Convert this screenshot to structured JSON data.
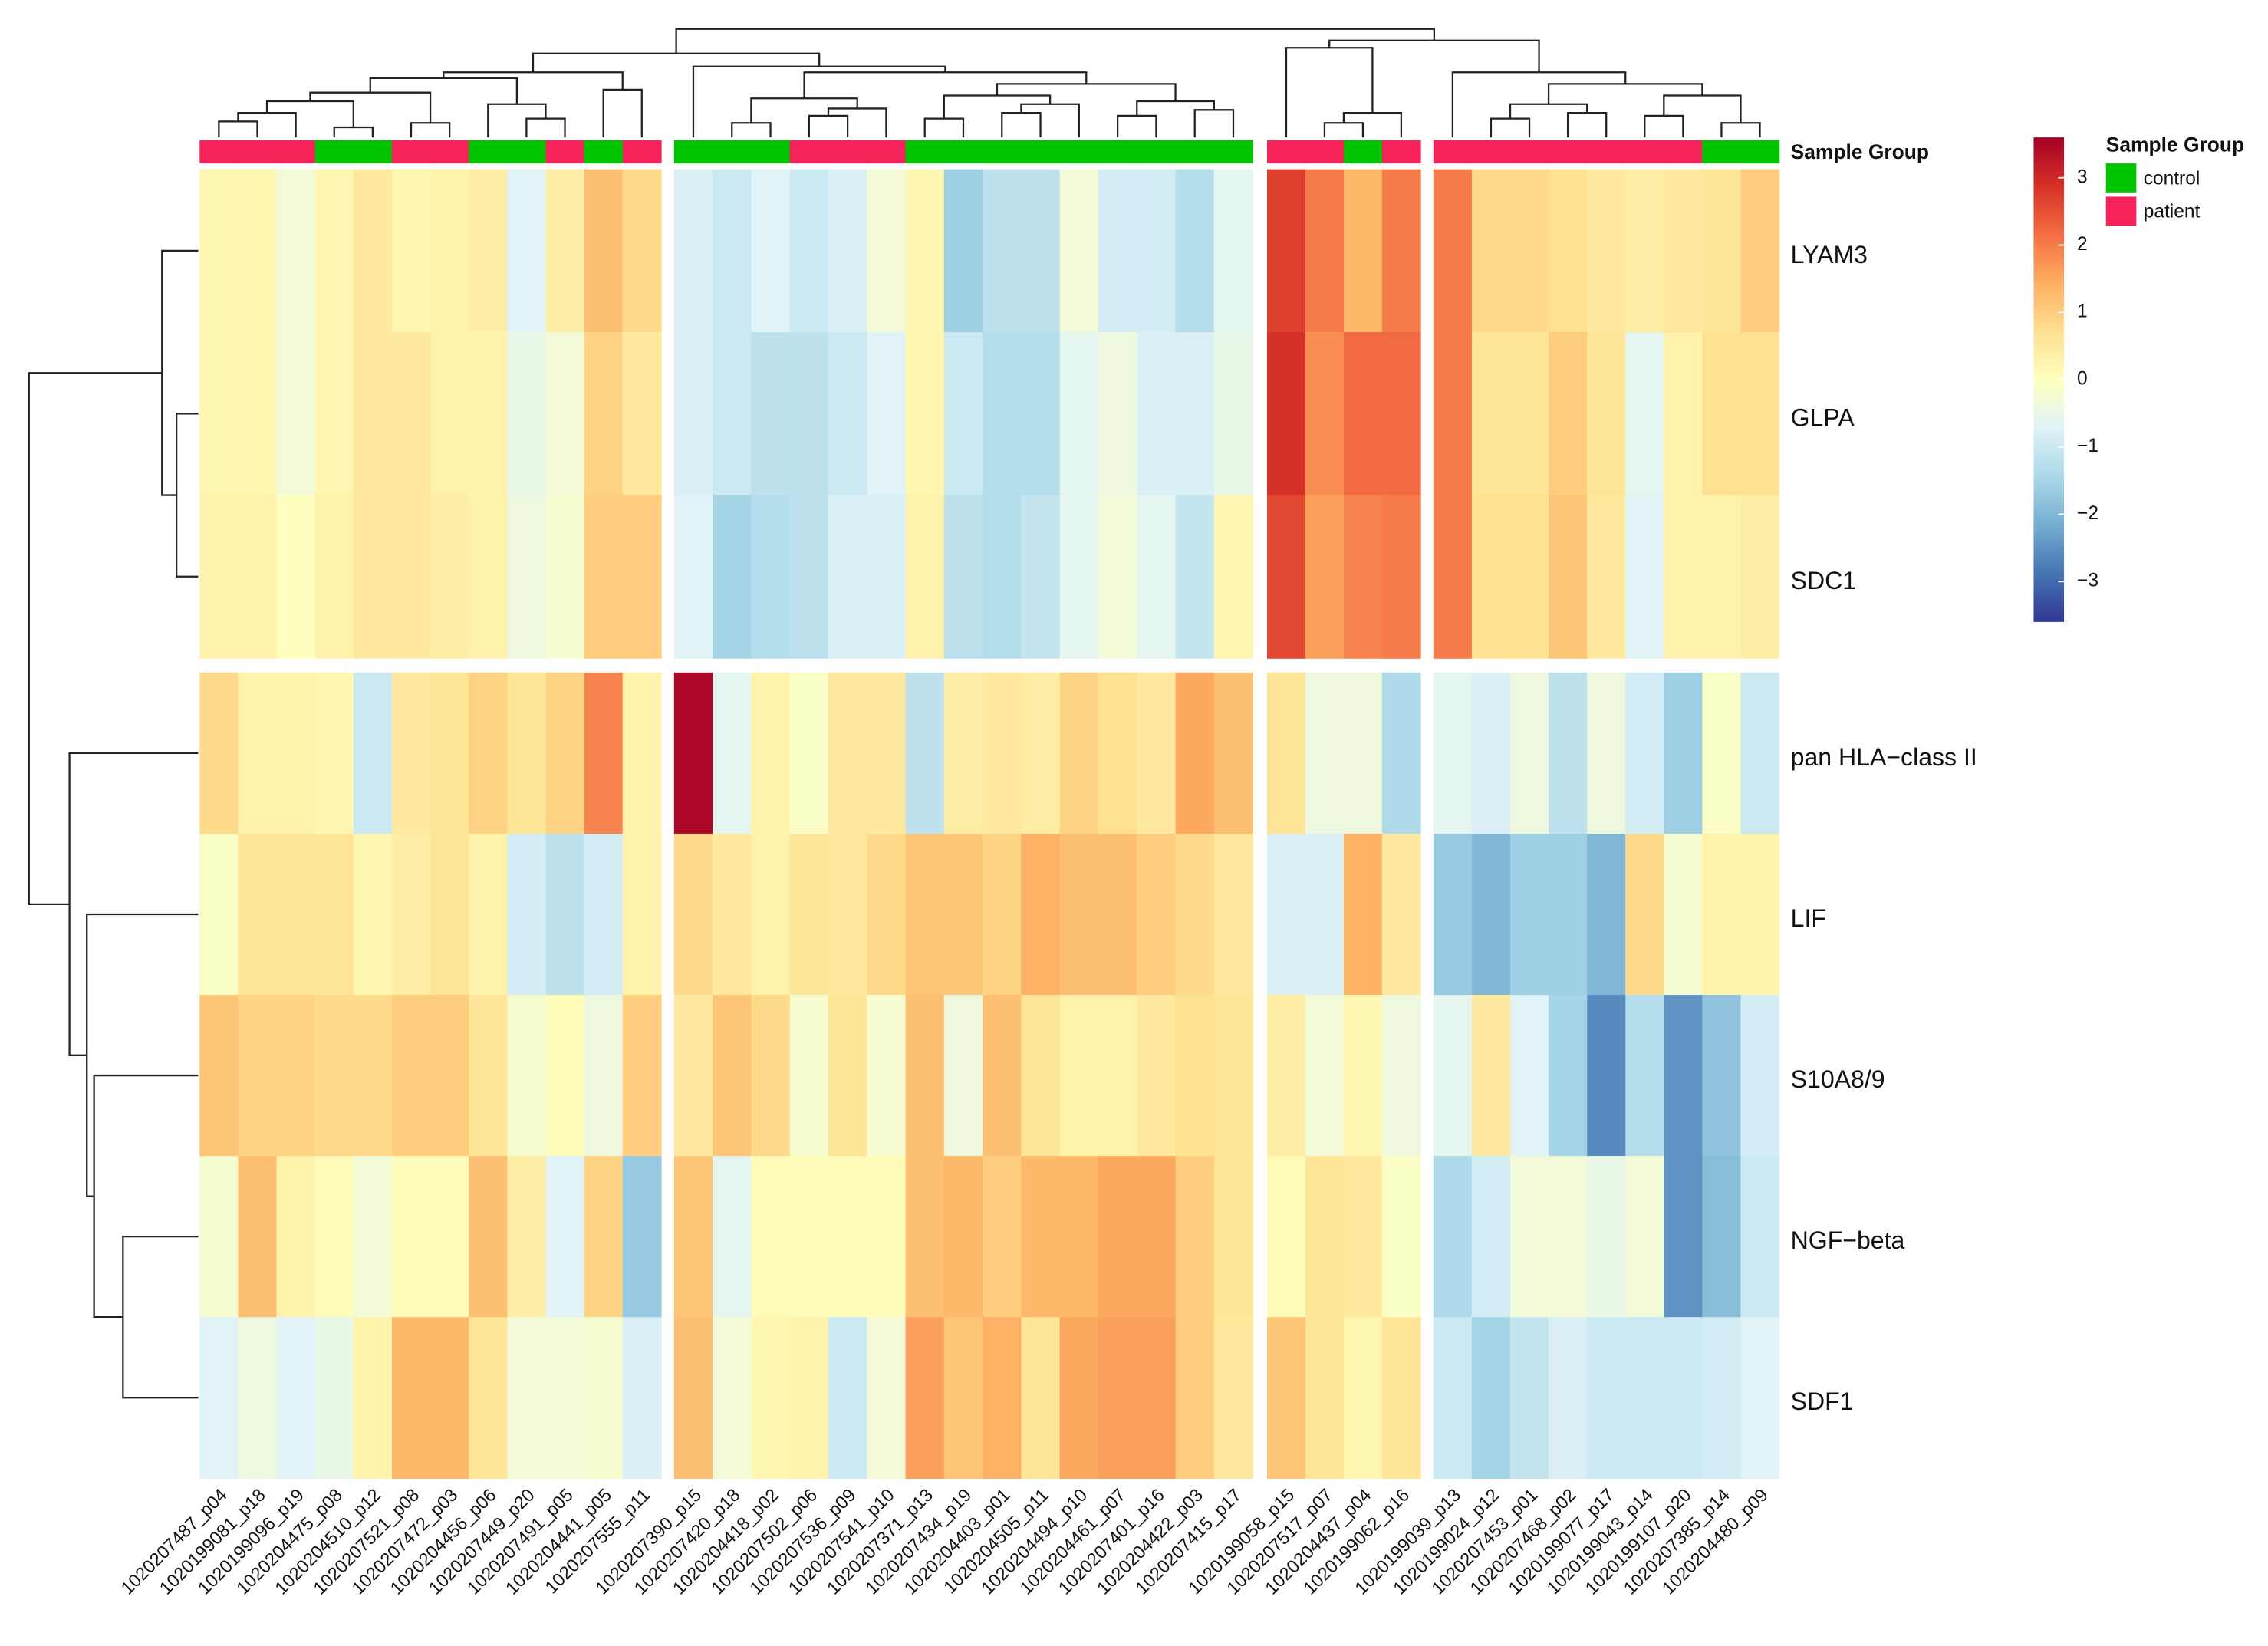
{
  "chart_data": {
    "type": "heatmap",
    "rows": [
      "LYAM3",
      "GLPA",
      "SDC1",
      "pan HLA−class II",
      "LIF",
      "S10A8/9",
      "NGF−beta",
      "SDF1"
    ],
    "columns": [
      "1020207487_p04",
      "1020199081_p18",
      "1020199096_p19",
      "1020204475_p08",
      "1020204510_p12",
      "1020207521_p08",
      "1020207472_p03",
      "1020204456_p06",
      "1020207449_p20",
      "1020207491_p05",
      "1020204441_p05",
      "1020207555_p11",
      "1020207390_p15",
      "1020207420_p18",
      "1020204418_p02",
      "1020207502_p06",
      "1020207536_p09",
      "1020207541_p10",
      "1020207371_p13",
      "1020207434_p19",
      "1020204403_p01",
      "1020204505_p11",
      "1020204494_p10",
      "1020204461_p07",
      "1020207401_p16",
      "1020204422_p03",
      "1020207415_p17",
      "1020199058_p15",
      "1020207517_p07",
      "1020204437_p04",
      "1020199062_p16",
      "1020199039_p13",
      "1020199024_p12",
      "1020207453_p01",
      "1020207468_p02",
      "1020199077_p17",
      "1020199043_p14",
      "1020199107_p20",
      "1020207385_p14",
      "1020204480_p09"
    ],
    "values": [
      [
        0.2,
        0.2,
        -0.3,
        0.2,
        0.5,
        0.2,
        0.3,
        0.4,
        -0.7,
        0.4,
        1.2,
        0.8,
        -0.8,
        -1,
        -0.7,
        -1,
        -0.8,
        -0.3,
        0.2,
        -1.6,
        -1.2,
        -1.2,
        -0.3,
        -0.9,
        -0.9,
        -1.3,
        -0.6,
        2.7,
        2,
        1.3,
        2,
        2,
        0.8,
        0.8,
        0.7,
        0.5,
        0.4,
        0.5,
        0.6,
        1.0
      ],
      [
        0.2,
        0.2,
        -0.3,
        0.2,
        0.5,
        0.5,
        0.3,
        0.3,
        -0.5,
        -0.3,
        0.9,
        0.5,
        -0.8,
        -1,
        -1.2,
        -1.2,
        -1,
        -0.7,
        0.2,
        -1,
        -1.3,
        -1.3,
        -0.6,
        -0.4,
        -0.8,
        -0.8,
        -0.5,
        2.9,
        1.8,
        2.2,
        2.2,
        2,
        0.6,
        0.6,
        1.0,
        0.6,
        -0.6,
        0.3,
        0.7,
        0.7
      ],
      [
        0.3,
        0.3,
        0,
        0.3,
        0.5,
        0.5,
        0.4,
        0.3,
        -0.4,
        -0.2,
        1.0,
        1.0,
        -0.7,
        -1.5,
        -1.3,
        -1.2,
        -0.8,
        -0.8,
        0.3,
        -1.2,
        -1.3,
        -1.1,
        -0.6,
        -0.3,
        -0.6,
        -1.1,
        0.2,
        2.6,
        1.6,
        1.9,
        2.0,
        2.0,
        0.7,
        0.7,
        1.1,
        0.5,
        -0.7,
        0.3,
        0.3,
        0.4
      ],
      [
        0.8,
        0.3,
        0.3,
        0.2,
        -1.0,
        0.5,
        0.6,
        0.9,
        0.6,
        0.9,
        1.9,
        0.3,
        3.5,
        -0.6,
        0.3,
        -0.1,
        0.5,
        0.5,
        -1.2,
        0.4,
        0.5,
        0.4,
        0.9,
        0.7,
        0.5,
        1.5,
        1.2,
        0.6,
        -0.4,
        -0.4,
        -1.4,
        -0.6,
        -0.8,
        -0.4,
        -1.2,
        -0.4,
        -0.9,
        -1.6,
        -0.1,
        -1.0
      ],
      [
        -0.1,
        0.6,
        0.6,
        0.6,
        0.2,
        0.4,
        0.6,
        0.3,
        -0.9,
        -1.2,
        -0.9,
        0.3,
        0.8,
        0.5,
        0.3,
        0.6,
        0.5,
        0.8,
        1.1,
        1.1,
        0.9,
        1.4,
        1.2,
        1.2,
        1.0,
        0.8,
        0.5,
        -0.8,
        -0.8,
        1.4,
        0.5,
        -1.7,
        -2.0,
        -1.6,
        -1.6,
        -2.0,
        0.8,
        -0.2,
        0.3,
        0.3
      ],
      [
        1.1,
        0.9,
        0.9,
        0.8,
        0.8,
        1.0,
        1.0,
        0.6,
        -0.2,
        0.1,
        -0.4,
        1.0,
        0.5,
        1.1,
        0.8,
        -0.2,
        0.6,
        -0.2,
        1.2,
        -0.4,
        1.2,
        0.6,
        0.3,
        0.3,
        0.5,
        0.7,
        0.6,
        0.4,
        -0.3,
        0.2,
        -0.4,
        -0.6,
        0.5,
        -0.7,
        -1.5,
        -2.6,
        -1.3,
        -2.5,
        -1.8,
        -0.9
      ],
      [
        -0.2,
        1.2,
        0.3,
        0.1,
        -0.3,
        0.1,
        0.1,
        1.2,
        0.4,
        -0.7,
        0.9,
        -1.7,
        1.1,
        -0.6,
        0.1,
        0.1,
        0.1,
        0.1,
        1.2,
        1.3,
        1.0,
        1.3,
        1.3,
        1.5,
        1.5,
        1.0,
        0.6,
        0.1,
        0.6,
        0.5,
        -0.1,
        -1.4,
        -0.9,
        -0.3,
        -0.3,
        -0.5,
        -0.3,
        -2.5,
        -1.9,
        -1.0
      ],
      [
        -0.7,
        -0.4,
        -0.7,
        -0.5,
        0.3,
        1.3,
        1.3,
        0.6,
        -0.3,
        -0.3,
        -0.2,
        -0.8,
        1.2,
        -0.3,
        0.2,
        0.3,
        -1.0,
        -0.3,
        1.6,
        1.1,
        1.4,
        0.6,
        1.5,
        1.6,
        1.6,
        1.0,
        0.5,
        1.1,
        0.6,
        0.2,
        0.6,
        -1.0,
        -1.5,
        -1.1,
        -0.8,
        -1.0,
        -1.0,
        -1.0,
        -0.9,
        -0.7
      ]
    ],
    "zlim": [
      -3.6,
      3.6
    ],
    "colors": [
      "#313695",
      "#4575b4",
      "#74add1",
      "#abd9e9",
      "#e0f3f8",
      "#ffffbf",
      "#fee090",
      "#fdae61",
      "#f46d43",
      "#d73027",
      "#a50026"
    ],
    "legend_ticks": [
      {
        "value": -3,
        "label": "−3"
      },
      {
        "value": -2,
        "label": "−2"
      },
      {
        "value": -1,
        "label": "−1"
      },
      0,
      1,
      2,
      3
    ],
    "annotation": {
      "title": "Sample Group",
      "levels": [
        {
          "name": "control",
          "color": "#00c400"
        },
        {
          "name": "patient",
          "color": "#f5235a"
        }
      ],
      "values": [
        "patient",
        "patient",
        "patient",
        "control",
        "control",
        "patient",
        "patient",
        "control",
        "control",
        "patient",
        "control",
        "patient",
        "control",
        "control",
        "control",
        "patient",
        "patient",
        "patient",
        "control",
        "control",
        "control",
        "control",
        "control",
        "control",
        "control",
        "control",
        "control",
        "patient",
        "patient",
        "control",
        "patient",
        "patient",
        "patient",
        "patient",
        "patient",
        "patient",
        "patient",
        "patient",
        "control",
        "control"
      ]
    }
  }
}
